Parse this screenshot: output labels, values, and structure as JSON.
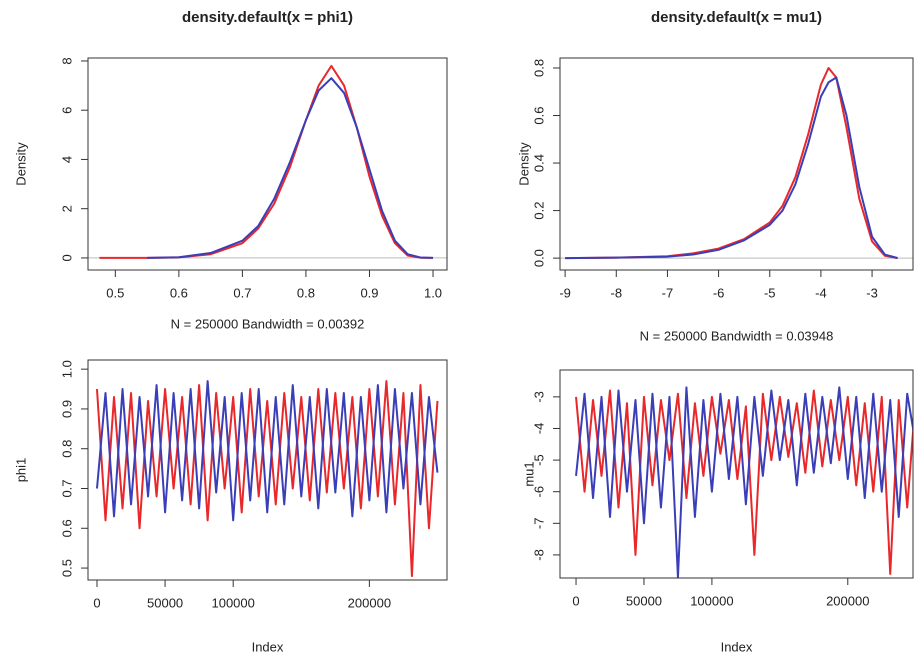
{
  "chart_data": [
    {
      "type": "line",
      "title": "density.default(x = phi1)",
      "xlabel": "N = 250000   Bandwidth = 0.00392",
      "ylabel": "Density",
      "x": [
        0.475,
        0.5,
        0.55,
        0.6,
        0.65,
        0.7,
        0.725,
        0.75,
        0.775,
        0.8,
        0.82,
        0.84,
        0.86,
        0.88,
        0.9,
        0.92,
        0.94,
        0.96,
        0.98,
        1.0
      ],
      "series": [
        {
          "color": "#e8282a",
          "values": [
            0,
            0,
            0,
            0.02,
            0.15,
            0.6,
            1.2,
            2.2,
            3.7,
            5.6,
            7.0,
            7.8,
            7.0,
            5.3,
            3.3,
            1.7,
            0.6,
            0.1,
            0.01,
            0
          ]
        },
        {
          "color": "#3a3fb8",
          "values": [
            null,
            null,
            0,
            0.03,
            0.2,
            0.7,
            1.3,
            2.4,
            3.9,
            5.6,
            6.8,
            7.3,
            6.7,
            5.3,
            3.6,
            1.9,
            0.7,
            0.15,
            0.02,
            0
          ]
        }
      ],
      "xlim": [
        0.457,
        1.022
      ],
      "ylim": [
        -0.49,
        8.12
      ],
      "xticks": [
        0.5,
        0.6,
        0.7,
        0.8,
        0.9,
        {
          "value": 1,
          "label": "1.0"
        }
      ],
      "yticks": [
        0,
        2,
        4,
        6,
        8
      ],
      "zero_line": true
    },
    {
      "type": "line",
      "title": "density.default(x = mu1)",
      "xlabel": "N = 250000   Bandwidth = 0.03948",
      "ylabel": "Density",
      "x": [
        -9,
        -8,
        -7,
        -6.5,
        -6,
        -5.5,
        -5,
        -4.75,
        -4.5,
        -4.25,
        -4,
        -3.85,
        -3.7,
        -3.5,
        -3.25,
        -3,
        -2.75,
        -2.5
      ],
      "series": [
        {
          "color": "#e8282a",
          "values": [
            0,
            0.002,
            0.008,
            0.02,
            0.04,
            0.08,
            0.15,
            0.22,
            0.34,
            0.52,
            0.73,
            0.8,
            0.76,
            0.55,
            0.25,
            0.07,
            0.01,
            0
          ]
        },
        {
          "color": "#3a3fb8",
          "values": [
            0,
            0.002,
            0.006,
            0.015,
            0.035,
            0.075,
            0.14,
            0.2,
            0.31,
            0.48,
            0.68,
            0.74,
            0.76,
            0.6,
            0.3,
            0.09,
            0.015,
            0
          ]
        }
      ],
      "xlim": [
        -9.1,
        -2.2
      ],
      "ylim": [
        -0.05,
        0.842
      ],
      "xticks": [
        -9,
        -8,
        -7,
        -6,
        -5,
        -4,
        -3
      ],
      "yticks": [
        {
          "value": 0,
          "label": "0.0"
        },
        0.2,
        0.4,
        0.6,
        0.8
      ],
      "zero_line": true
    },
    {
      "type": "line",
      "xlabel": "Index",
      "ylabel": "phi1",
      "x": [
        0,
        6250,
        12500,
        18750,
        25000,
        31250,
        37500,
        43750,
        50000,
        56250,
        62500,
        68750,
        75000,
        81250,
        87500,
        93750,
        100000,
        106250,
        112500,
        118750,
        125000,
        131250,
        137500,
        143750,
        150000,
        156250,
        162500,
        168750,
        175000,
        181250,
        187500,
        193750,
        200000,
        206250,
        212500,
        218750,
        225000,
        231250,
        237500,
        243750,
        250000
      ],
      "series": [
        {
          "color": "#e8282a",
          "values": [
            0.95,
            0.62,
            0.93,
            0.65,
            0.94,
            0.6,
            0.92,
            0.68,
            0.95,
            0.7,
            0.93,
            0.66,
            0.96,
            0.62,
            0.94,
            0.7,
            0.93,
            0.64,
            0.95,
            0.68,
            0.92,
            0.66,
            0.94,
            0.7,
            0.93,
            0.67,
            0.95,
            0.69,
            0.94,
            0.7,
            0.93,
            0.65,
            0.95,
            0.68,
            0.97,
            0.66,
            0.94,
            0.48,
            0.96,
            0.6,
            0.92
          ]
        },
        {
          "color": "#3a3fb8",
          "values": [
            0.7,
            0.94,
            0.63,
            0.95,
            0.66,
            0.93,
            0.68,
            0.96,
            0.64,
            0.94,
            0.67,
            0.95,
            0.65,
            0.97,
            0.69,
            0.93,
            0.62,
            0.94,
            0.67,
            0.95,
            0.64,
            0.93,
            0.66,
            0.96,
            0.68,
            0.93,
            0.65,
            0.95,
            0.69,
            0.94,
            0.63,
            0.93,
            0.67,
            0.96,
            0.64,
            0.95,
            0.7,
            0.94,
            0.66,
            0.93,
            0.74
          ]
        }
      ],
      "xlim": [
        -6600,
        257000
      ],
      "ylim": [
        0.47,
        1.023
      ],
      "xticks": [
        0,
        50000,
        100000,
        200000
      ],
      "yticks": [
        0.5,
        0.6,
        0.7,
        0.8,
        0.9,
        {
          "value": 1,
          "label": "1.0"
        }
      ]
    },
    {
      "type": "line",
      "xlabel": "Index",
      "ylabel": "mu1",
      "x": [
        0,
        6250,
        12500,
        18750,
        25000,
        31250,
        37500,
        43750,
        50000,
        56250,
        62500,
        68750,
        75000,
        81250,
        87500,
        93750,
        100000,
        106250,
        112500,
        118750,
        125000,
        131250,
        137500,
        143750,
        150000,
        156250,
        162500,
        168750,
        175000,
        181250,
        187500,
        193750,
        200000,
        206250,
        212500,
        218750,
        225000,
        231250,
        237500,
        243750,
        250000
      ],
      "series": [
        {
          "color": "#e8282a",
          "values": [
            -3.0,
            -6.0,
            -3.1,
            -5.5,
            -2.8,
            -6.5,
            -3.2,
            -8.0,
            -3.0,
            -5.8,
            -3.1,
            -5.0,
            -2.9,
            -6.2,
            -3.2,
            -5.5,
            -3.0,
            -4.8,
            -3.1,
            -5.6,
            -3.3,
            -8.0,
            -2.9,
            -5.0,
            -3.0,
            -4.9,
            -3.2,
            -5.4,
            -2.8,
            -5.2,
            -3.1,
            -5.0,
            -3.0,
            -5.8,
            -3.2,
            -6.0,
            -3.0,
            -8.6,
            -3.1,
            -6.5,
            -3.0
          ]
        },
        {
          "color": "#3a3fb8",
          "values": [
            -5.5,
            -2.9,
            -6.2,
            -3.0,
            -6.8,
            -2.8,
            -6.0,
            -3.1,
            -7.0,
            -2.9,
            -6.5,
            -3.0,
            -8.7,
            -2.7,
            -6.8,
            -3.1,
            -6.0,
            -2.9,
            -5.6,
            -3.0,
            -6.4,
            -3.0,
            -5.5,
            -2.8,
            -5.0,
            -3.1,
            -5.8,
            -2.9,
            -5.4,
            -3.0,
            -5.1,
            -2.7,
            -5.6,
            -3.0,
            -6.2,
            -2.9,
            -6.0,
            -3.1,
            -6.8,
            -2.9,
            -4.5
          ]
        }
      ],
      "xlim": [
        -11800,
        248000
      ],
      "ylim": [
        -8.73,
        -2.15
      ],
      "xticks": [
        0,
        50000,
        100000,
        200000
      ],
      "yticks": [
        -8,
        -7,
        -6,
        -5,
        -4,
        -3
      ]
    }
  ]
}
